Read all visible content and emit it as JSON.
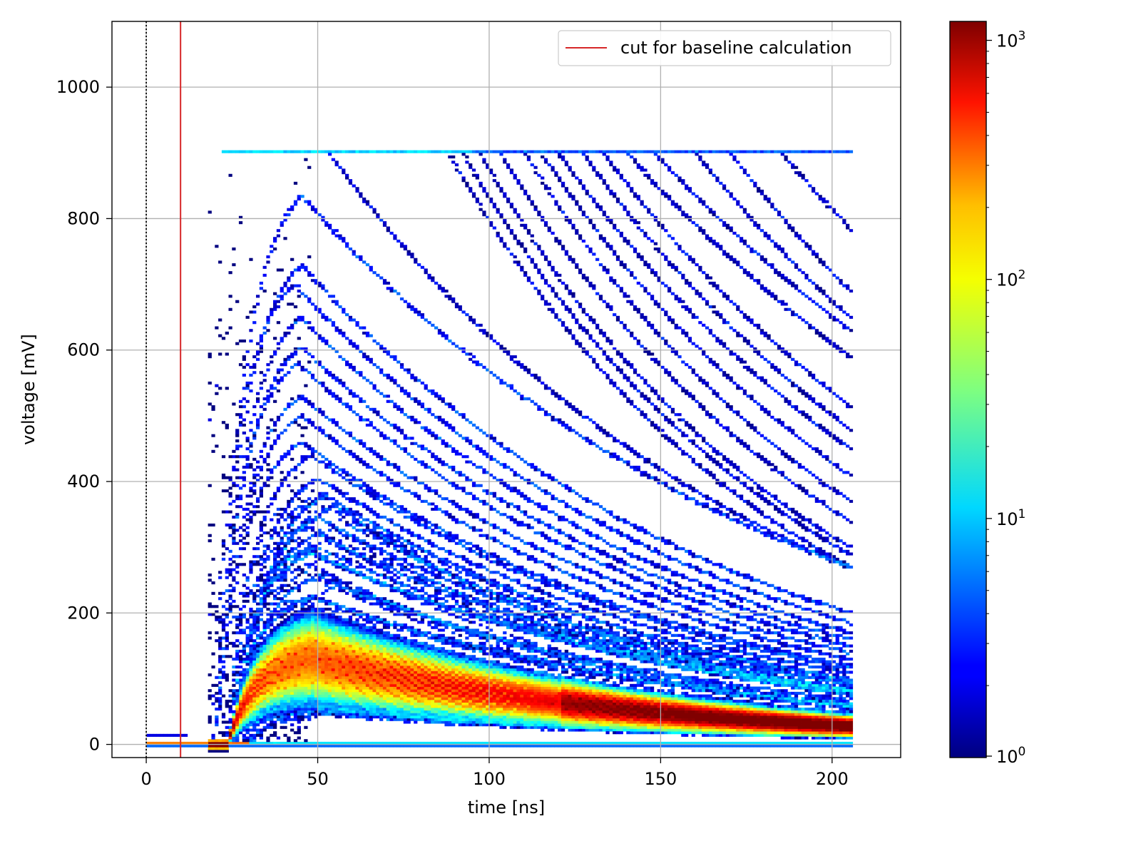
{
  "chart_data": {
    "type": "heatmap",
    "title": "",
    "xlabel": "time [ns]",
    "ylabel": "voltage [mV]",
    "xlim": [
      -10,
      220
    ],
    "ylim": [
      -20,
      1100
    ],
    "x_ticks": [
      0,
      50,
      100,
      150,
      200
    ],
    "y_ticks": [
      0,
      200,
      400,
      600,
      800,
      1000
    ],
    "grid": true,
    "legend": {
      "placement": "top-right",
      "entries": [
        {
          "label": "cut for baseline calculation",
          "color": "#d62728",
          "style": "solid line"
        }
      ]
    },
    "reference_lines": [
      {
        "x": 0,
        "style": "dotted",
        "color": "#000000"
      },
      {
        "x": 10,
        "style": "solid",
        "color": "#d62728",
        "label": "cut for baseline calculation"
      }
    ],
    "colorbar": {
      "scale": "log",
      "colormap": "jet",
      "min": 1,
      "max": 1200,
      "ticks": [
        {
          "value": 1,
          "base": "10",
          "exp": "0"
        },
        {
          "value": 10,
          "base": "10",
          "exp": "1"
        },
        {
          "value": 100,
          "base": "10",
          "exp": "2"
        },
        {
          "value": 1000,
          "base": "10",
          "exp": "3"
        }
      ]
    },
    "data_description": {
      "x_range_ns": [
        0,
        205
      ],
      "baseline_mV": 0,
      "pulse_onset_ns": 20,
      "pulse_peak_ns": 45,
      "saturation_level_mV": 900,
      "dense_band": {
        "peak_mV": 130,
        "end_mV": 28,
        "max_count": 600
      },
      "traces": [
        {
          "peak_time_ns": 45,
          "peak_mV": 835,
          "end_mV": 270
        },
        {
          "peak_time_ns": 45,
          "peak_mV": 730,
          "end_mV": 200
        },
        {
          "peak_time_ns": 43,
          "peak_mV": 700,
          "end_mV": 185
        },
        {
          "peak_time_ns": 45,
          "peak_mV": 650,
          "end_mV": 170
        },
        {
          "peak_time_ns": 45,
          "peak_mV": 605,
          "end_mV": 160
        },
        {
          "peak_time_ns": 44,
          "peak_mV": 580,
          "end_mV": 150
        },
        {
          "peak_time_ns": 45,
          "peak_mV": 530,
          "end_mV": 140
        },
        {
          "peak_time_ns": 45,
          "peak_mV": 500,
          "end_mV": 130
        },
        {
          "peak_time_ns": 45,
          "peak_mV": 460,
          "end_mV": 120
        },
        {
          "peak_time_ns": 48,
          "peak_mV": 440,
          "end_mV": 115
        },
        {
          "peak_time_ns": 50,
          "peak_mV": 405,
          "end_mV": 108
        },
        {
          "peak_time_ns": 52,
          "peak_mV": 380,
          "end_mV": 100
        },
        {
          "peak_time_ns": 50,
          "peak_mV": 345,
          "end_mV": 92
        },
        {
          "peak_time_ns": 50,
          "peak_mV": 320,
          "end_mV": 85
        },
        {
          "peak_time_ns": 48,
          "peak_mV": 290,
          "end_mV": 78
        },
        {
          "peak_time_ns": 50,
          "peak_mV": 255,
          "end_mV": 68
        },
        {
          "peak_time_ns": 48,
          "peak_mV": 225,
          "end_mV": 60
        },
        {
          "peak_time_ns": 50,
          "peak_mV": 90,
          "end_mV": 20
        },
        {
          "peak_time_ns": 48,
          "peak_mV": 60,
          "end_mV": 14
        }
      ],
      "saturated_traces": [
        {
          "leave_900_ns": 53,
          "end_mV": 270
        },
        {
          "leave_900_ns": 88,
          "end_mV": 270
        },
        {
          "leave_900_ns": 92,
          "end_mV": 290
        },
        {
          "leave_900_ns": 97,
          "end_mV": 300
        },
        {
          "leave_900_ns": 103,
          "end_mV": 340
        },
        {
          "leave_900_ns": 110,
          "end_mV": 370
        },
        {
          "leave_900_ns": 115,
          "end_mV": 410
        },
        {
          "leave_900_ns": 120,
          "end_mV": 450
        },
        {
          "leave_900_ns": 127,
          "end_mV": 480
        },
        {
          "leave_900_ns": 133,
          "end_mV": 515
        },
        {
          "leave_900_ns": 140,
          "end_mV": 590
        },
        {
          "leave_900_ns": 148,
          "end_mV": 630
        },
        {
          "leave_900_ns": 160,
          "end_mV": 650
        },
        {
          "leave_900_ns": 170,
          "end_mV": 690
        },
        {
          "leave_900_ns": 185,
          "end_mV": 785
        }
      ]
    }
  }
}
